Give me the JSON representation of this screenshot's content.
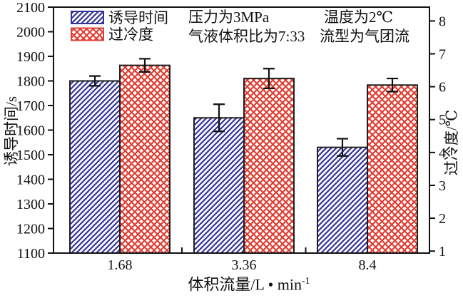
{
  "chart_data": {
    "type": "bar",
    "categories": [
      "1.68",
      "3.36",
      "8.4"
    ],
    "series": [
      {
        "name": "诱导时间",
        "axis": "left",
        "color": "#32329b",
        "hatch": "diagonal",
        "values": [
          1800,
          1650,
          1530
        ],
        "errors": [
          20,
          55,
          35
        ]
      },
      {
        "name": "过冷度",
        "axis": "right",
        "color": "#e23d32",
        "hatch": "crosshatch",
        "values": [
          6.65,
          6.25,
          6.05
        ],
        "errors": [
          0.2,
          0.3,
          0.2
        ]
      }
    ],
    "left_axis": {
      "label": "诱导时间/s",
      "min": 1100,
      "max": 2100,
      "tick_step": 100,
      "ticks": [
        1100,
        1200,
        1300,
        1400,
        1500,
        1600,
        1700,
        1800,
        1900,
        2000,
        2100
      ]
    },
    "right_axis": {
      "label": "过冷度/℃",
      "min": 0.94,
      "max": 8.42,
      "ticks": [
        1,
        2,
        3,
        4,
        5,
        6,
        7,
        8
      ]
    },
    "xlabel": {
      "text": "体积流量/L • min",
      "sup": "-1"
    },
    "annotations": [
      "压力为3MPa",
      "气液体积比为7:33",
      "温度为2℃",
      "流型为气团流"
    ],
    "legend": {
      "position": "top-left"
    },
    "grid": "off",
    "frame": "box",
    "colors": {
      "axis": "#111111",
      "error_bar": "#111111",
      "bar_edge": "#1f1f1f",
      "background": "#ffffff"
    }
  }
}
